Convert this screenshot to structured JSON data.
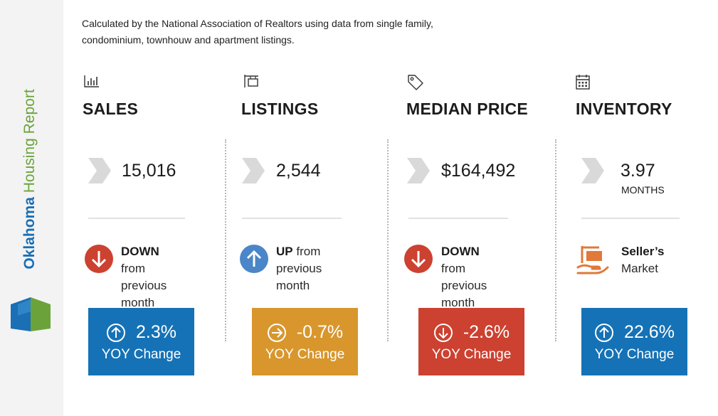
{
  "sidebar": {
    "title_strong": "Oklahoma",
    "title_light": "Housing Report",
    "logo_colors": {
      "blue": "#1a6fb5",
      "green": "#6ba33a"
    }
  },
  "note": "Calculated by the National Association of Realtors using data from single family, condominium, townhouw and apartment listings.",
  "colors": {
    "blue": "#1572b6",
    "orange": "#d8962c",
    "red": "#cc4130",
    "chevron": "#d9d9d9"
  },
  "metrics": [
    {
      "key": "sales",
      "icon": "bar-chart-icon",
      "heading": "SALES",
      "value": "15,016",
      "direction_strong": "DOWN",
      "direction_rest": "from",
      "direction_line2": "previous month",
      "direction_icon": "arrow-down-circle-icon",
      "yoy_value": "2.3%",
      "yoy_label": "YOY Change",
      "yoy_icon": "arrow-up-circle-icon",
      "yoy_color": "#1572b6"
    },
    {
      "key": "listings",
      "icon": "sign-post-icon",
      "heading": "LISTINGS",
      "value": "2,544",
      "direction_strong": "UP",
      "direction_rest": "from",
      "direction_line2": "previous month",
      "direction_icon": "arrow-up-circle-icon",
      "yoy_value": "-0.7%",
      "yoy_label": "YOY Change",
      "yoy_icon": "arrow-right-circle-icon",
      "yoy_color": "#d8962c"
    },
    {
      "key": "median_price",
      "icon": "price-tag-icon",
      "heading": "MEDIAN PRICE",
      "value": "$164,492",
      "direction_strong": "DOWN",
      "direction_rest": "from",
      "direction_line2": "previous month",
      "direction_icon": "arrow-down-circle-icon",
      "yoy_value": "-2.6%",
      "yoy_label": "YOY Change",
      "yoy_icon": "arrow-down-circle-icon",
      "yoy_color": "#cc4130"
    },
    {
      "key": "inventory",
      "icon": "calendar-icon",
      "heading": "INVENTORY",
      "value": "3.97",
      "unit": "MONTHS",
      "direction_strong": "Seller’s",
      "direction_line2": "Market",
      "direction_icon": "hand-sign-icon",
      "yoy_value": "22.6%",
      "yoy_label": "YOY Change",
      "yoy_icon": "arrow-up-circle-icon",
      "yoy_color": "#1572b6"
    }
  ]
}
